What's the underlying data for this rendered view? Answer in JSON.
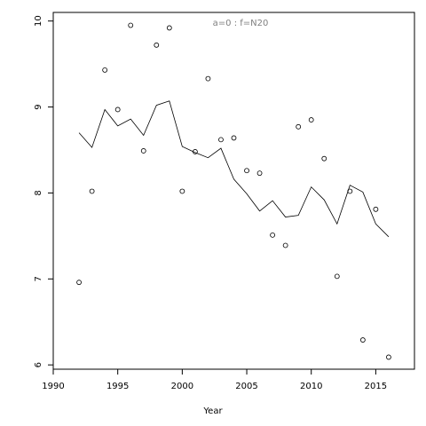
{
  "chart_data": {
    "type": "scatter",
    "title": "a=0  :  f=N20",
    "title_color": "#808080",
    "x_label": "Year",
    "x": [
      1992,
      1993,
      1994,
      1995,
      1996,
      1997,
      1998,
      1999,
      2000,
      2001,
      2002,
      2003,
      2004,
      2005,
      2006,
      2007,
      2008,
      2009,
      2010,
      2011,
      2012,
      2013,
      2014,
      2015,
      2016
    ],
    "series": [
      {
        "mark": "point",
        "color": "#000000",
        "values": [
          6.96,
          8.02,
          9.43,
          8.97,
          9.95,
          8.49,
          9.72,
          9.92,
          8.02,
          8.48,
          9.33,
          8.62,
          8.64,
          8.26,
          8.23,
          7.51,
          7.39,
          8.77,
          8.85,
          8.4,
          7.03,
          8.02,
          6.29,
          7.81,
          6.09
        ]
      },
      {
        "mark": "line",
        "color": "#000000",
        "values": [
          8.7,
          8.53,
          8.97,
          8.78,
          8.86,
          8.67,
          9.02,
          9.07,
          8.54,
          8.47,
          8.41,
          8.52,
          8.16,
          7.99,
          7.79,
          7.91,
          7.72,
          7.74,
          8.07,
          7.92,
          7.64,
          8.09,
          8.01,
          7.64,
          7.49
        ]
      }
    ],
    "xlim": [
      1990,
      2018
    ],
    "xticks": [
      1990,
      1995,
      2000,
      2005,
      2010,
      2015
    ],
    "ylim": [
      5.95,
      10.1
    ],
    "yticks": [
      6,
      7,
      8,
      9,
      10
    ]
  }
}
